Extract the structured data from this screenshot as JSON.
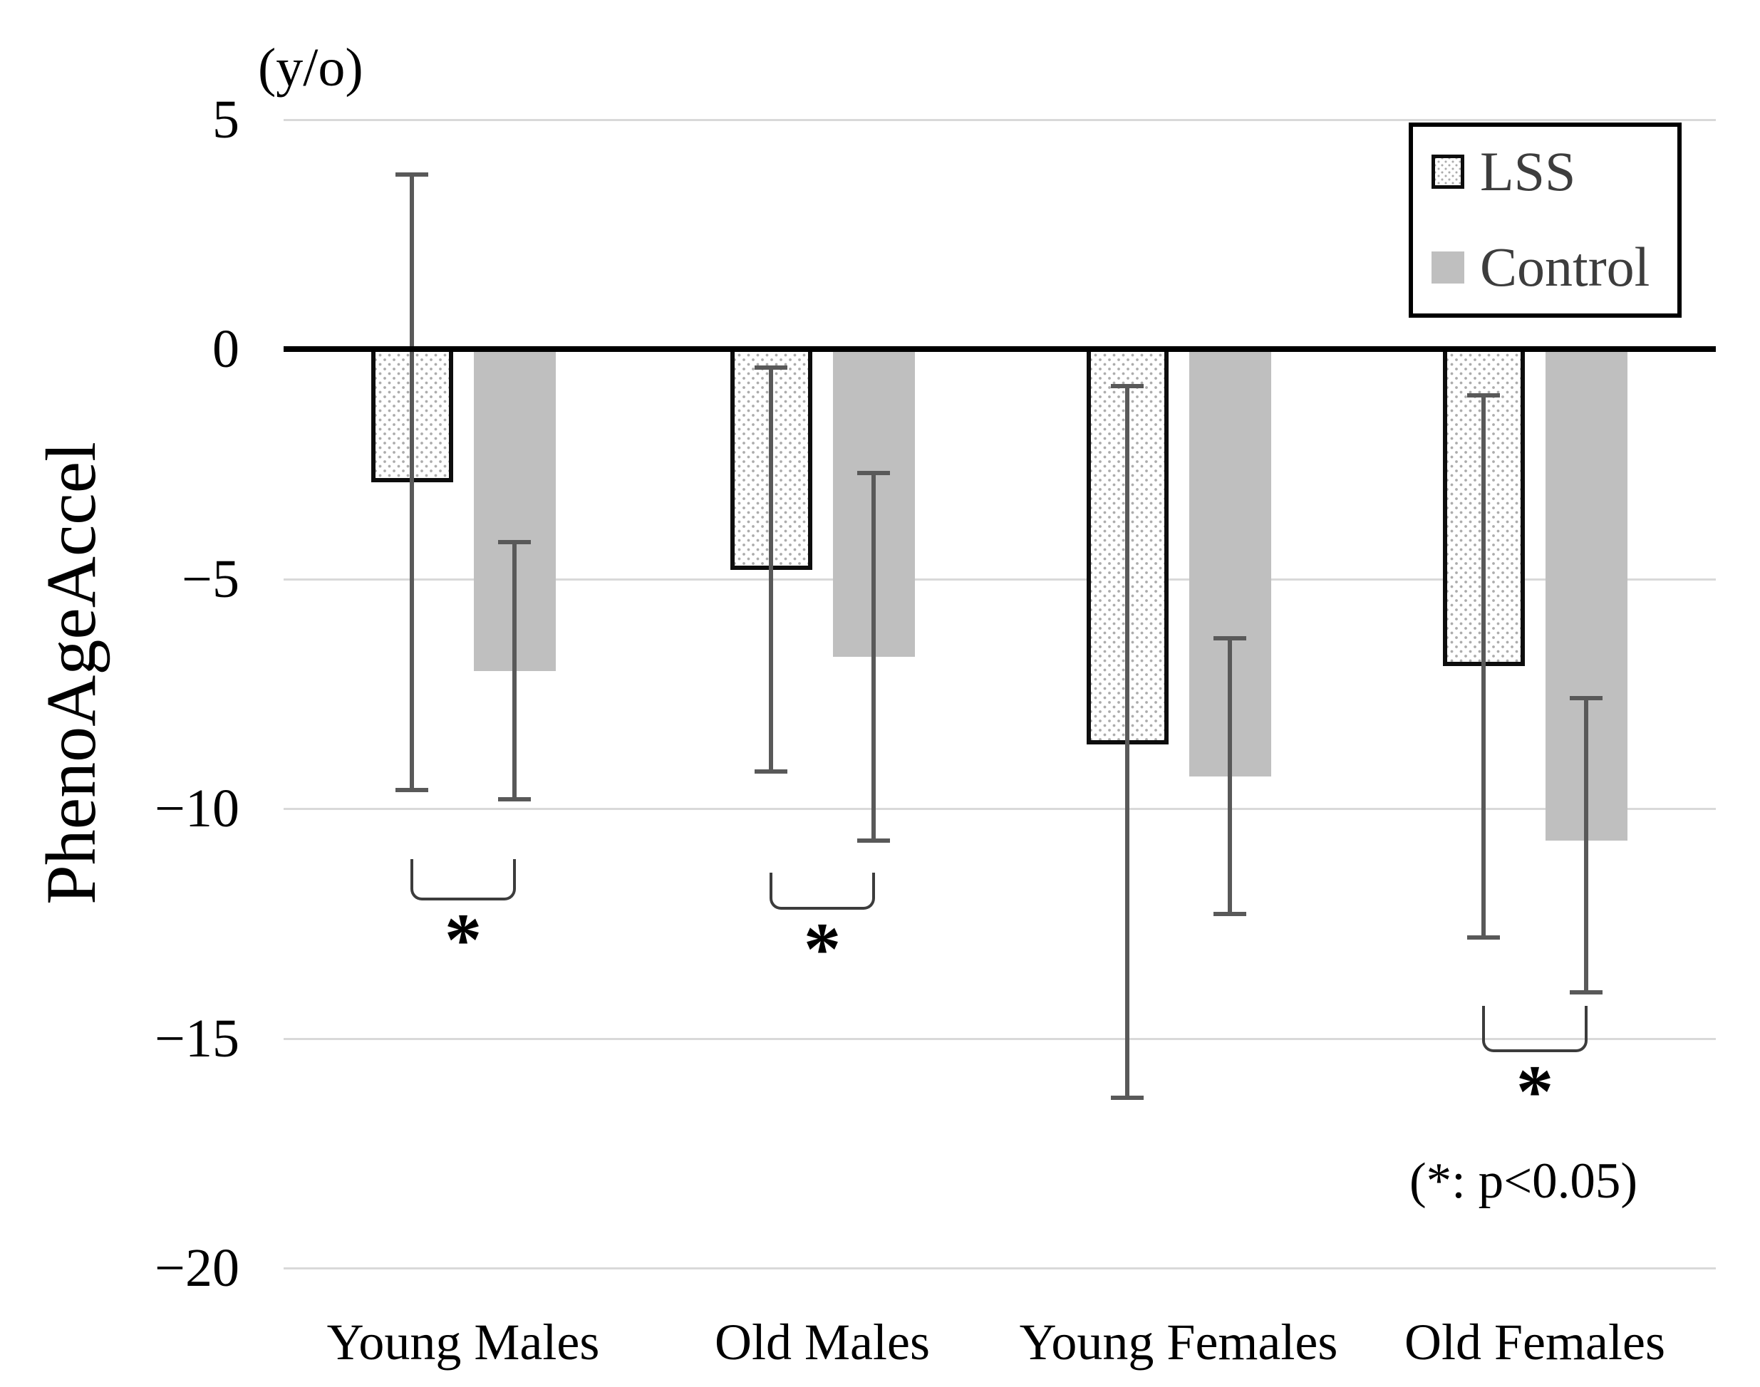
{
  "chart_data": {
    "type": "bar",
    "title": "",
    "ylabel": "PhenoAgeAccel",
    "y_axis_unit": "(y/o)",
    "ylim": [
      -20,
      5
    ],
    "grid": "horizontal",
    "legend_position": "top-right",
    "yticks": [
      {
        "value": 5,
        "label": "5"
      },
      {
        "value": 0,
        "label": "0"
      },
      {
        "value": -5,
        "label": "−5"
      },
      {
        "value": -10,
        "label": "−10"
      },
      {
        "value": -15,
        "label": "−15"
      },
      {
        "value": -20,
        "label": "−20"
      }
    ],
    "categories": [
      "Young Males",
      "Old Males",
      "Young Females",
      "Old Females"
    ],
    "series": [
      {
        "name": "LSS",
        "pattern": "hatched-white",
        "values": [
          -2.9,
          -4.8,
          -8.6,
          -6.9
        ],
        "error_top": [
          3.8,
          -0.4,
          -0.8,
          -1.0
        ],
        "error_bottom": [
          -9.6,
          -9.2,
          -16.3,
          -12.8
        ]
      },
      {
        "name": "Control",
        "pattern": "solid-gray",
        "values": [
          -7.0,
          -6.7,
          -9.3,
          -10.7
        ],
        "error_top": [
          -4.2,
          -2.7,
          -6.3,
          -7.6
        ],
        "error_bottom": [
          -9.8,
          -10.7,
          -12.3,
          -14.0
        ]
      }
    ],
    "significance_brackets": [
      {
        "category_index": 0,
        "label": "*",
        "bracket_from": -11.1,
        "bracket_to": -12.0
      },
      {
        "category_index": 1,
        "label": "*",
        "bracket_from": -11.4,
        "bracket_to": -12.2
      },
      {
        "category_index": 3,
        "label": "*",
        "bracket_from": -14.3,
        "bracket_to": -15.3
      }
    ],
    "footnote": "(*: p<0.05)",
    "legend_entries": [
      "LSS",
      "Control"
    ],
    "colors": {
      "control_fill": "#bfbfbf",
      "hatch_dot": "#ababab",
      "bar_border": "#0d0d0d",
      "error_bar": "#595959",
      "gridline": "#d9d9d9",
      "axis_line": "#000000",
      "bracket": "#3c3c3c",
      "legend_text": "#3d3d3d",
      "text": "#000000"
    }
  }
}
